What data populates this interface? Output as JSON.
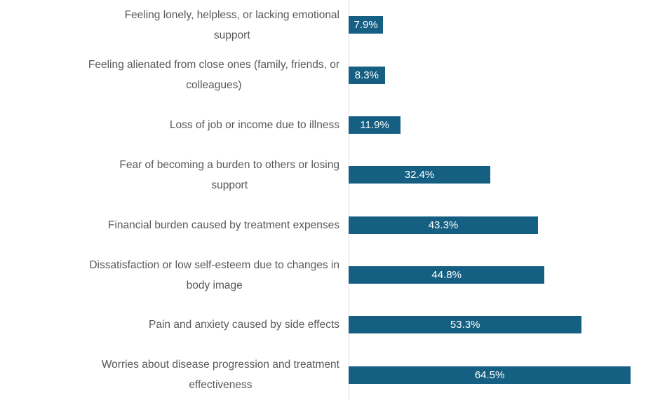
{
  "chart_data": {
    "type": "bar",
    "orientation": "horizontal",
    "title": "",
    "xlabel": "",
    "ylabel": "",
    "grid": false,
    "legend": false,
    "xlim": [
      0,
      68
    ],
    "categories": [
      "Feeling lonely, helpless, or lacking emotional support",
      "Feeling alienated from close ones (family, friends, or colleagues)",
      "Loss of job or income due to illness",
      "Fear of becoming a burden to others or losing support",
      "Financial burden caused by treatment expenses",
      "Dissatisfaction or low self-esteem due to changes in body image",
      "Pain and anxiety caused by side effects",
      "Worries about disease progression and treatment effectiveness"
    ],
    "display_lines": [
      [
        "Feeling lonely, helpless, or lacking emotional",
        "support"
      ],
      [
        "Feeling alienated from close ones (family, friends, or",
        "colleagues)"
      ],
      [
        "Loss of job or income due to illness"
      ],
      [
        "Fear of becoming a burden to others or losing",
        "support"
      ],
      [
        "Financial burden caused by treatment expenses"
      ],
      [
        "Dissatisfaction or low self-esteem due to changes in",
        "body image"
      ],
      [
        "Pain and anxiety caused by side effects"
      ],
      [
        "Worries about disease progression and treatment",
        "effectiveness"
      ]
    ],
    "values": [
      7.9,
      8.3,
      11.9,
      32.4,
      43.3,
      44.8,
      53.3,
      64.5
    ],
    "value_labels": [
      "7.9%",
      "8.3%",
      "11.9%",
      "32.4%",
      "43.3%",
      "44.8%",
      "53.3%",
      "64.5%"
    ],
    "colors": {
      "bar_fill": "#156082",
      "category_label": "#595959",
      "value_label": "#FFFFFF",
      "axis_line": "#D9D9D9",
      "background": "#FFFFFF"
    }
  }
}
